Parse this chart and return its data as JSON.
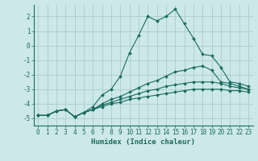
{
  "xlabel": "Humidex (Indice chaleur)",
  "bg_color": "#cce8e8",
  "grid_color": "#aacccc",
  "line_color": "#1a6b60",
  "xlim": [
    -0.5,
    23.5
  ],
  "ylim": [
    -5.5,
    2.8
  ],
  "yticks": [
    -5,
    -4,
    -3,
    -2,
    -1,
    0,
    1,
    2
  ],
  "xticks": [
    0,
    1,
    2,
    3,
    4,
    5,
    6,
    7,
    8,
    9,
    10,
    11,
    12,
    13,
    14,
    15,
    16,
    17,
    18,
    19,
    20,
    21,
    22,
    23
  ],
  "line1_x": [
    0,
    1,
    2,
    3,
    4,
    5,
    6,
    7,
    8,
    9,
    10,
    11,
    12,
    13,
    14,
    15,
    16,
    17,
    18,
    19,
    20,
    21,
    22,
    23
  ],
  "line1_y": [
    -4.8,
    -4.8,
    -4.5,
    -4.4,
    -4.9,
    -4.6,
    -4.2,
    -3.4,
    -3.0,
    -2.1,
    -0.5,
    0.7,
    2.0,
    1.7,
    2.0,
    2.5,
    1.5,
    0.5,
    -0.6,
    -0.7,
    -1.5,
    -2.5,
    -2.6,
    -2.8
  ],
  "line2_x": [
    0,
    1,
    2,
    3,
    4,
    5,
    6,
    7,
    8,
    9,
    10,
    11,
    12,
    13,
    14,
    15,
    16,
    17,
    18,
    19,
    20,
    21,
    22,
    23
  ],
  "line2_y": [
    -4.8,
    -4.8,
    -4.5,
    -4.4,
    -4.9,
    -4.6,
    -4.4,
    -4.0,
    -3.7,
    -3.5,
    -3.2,
    -2.9,
    -2.6,
    -2.4,
    -2.1,
    -1.8,
    -1.7,
    -1.5,
    -1.4,
    -1.7,
    -2.5,
    -2.6,
    -2.8,
    -3.0
  ],
  "line3_x": [
    0,
    1,
    2,
    3,
    4,
    5,
    6,
    7,
    8,
    9,
    10,
    11,
    12,
    13,
    14,
    15,
    16,
    17,
    18,
    19,
    20,
    21,
    22,
    23
  ],
  "line3_y": [
    -4.8,
    -4.8,
    -4.5,
    -4.4,
    -4.9,
    -4.6,
    -4.4,
    -4.1,
    -3.9,
    -3.7,
    -3.5,
    -3.3,
    -3.1,
    -3.0,
    -2.8,
    -2.7,
    -2.6,
    -2.5,
    -2.5,
    -2.5,
    -2.6,
    -2.8,
    -2.9,
    -3.0
  ],
  "line4_x": [
    0,
    1,
    2,
    3,
    4,
    5,
    6,
    7,
    8,
    9,
    10,
    11,
    12,
    13,
    14,
    15,
    16,
    17,
    18,
    19,
    20,
    21,
    22,
    23
  ],
  "line4_y": [
    -4.8,
    -4.8,
    -4.5,
    -4.4,
    -4.9,
    -4.6,
    -4.4,
    -4.2,
    -4.0,
    -3.9,
    -3.7,
    -3.6,
    -3.5,
    -3.4,
    -3.3,
    -3.2,
    -3.1,
    -3.0,
    -3.0,
    -3.0,
    -3.0,
    -3.1,
    -3.1,
    -3.2
  ],
  "tick_fontsize": 5.5,
  "xlabel_fontsize": 6.5
}
